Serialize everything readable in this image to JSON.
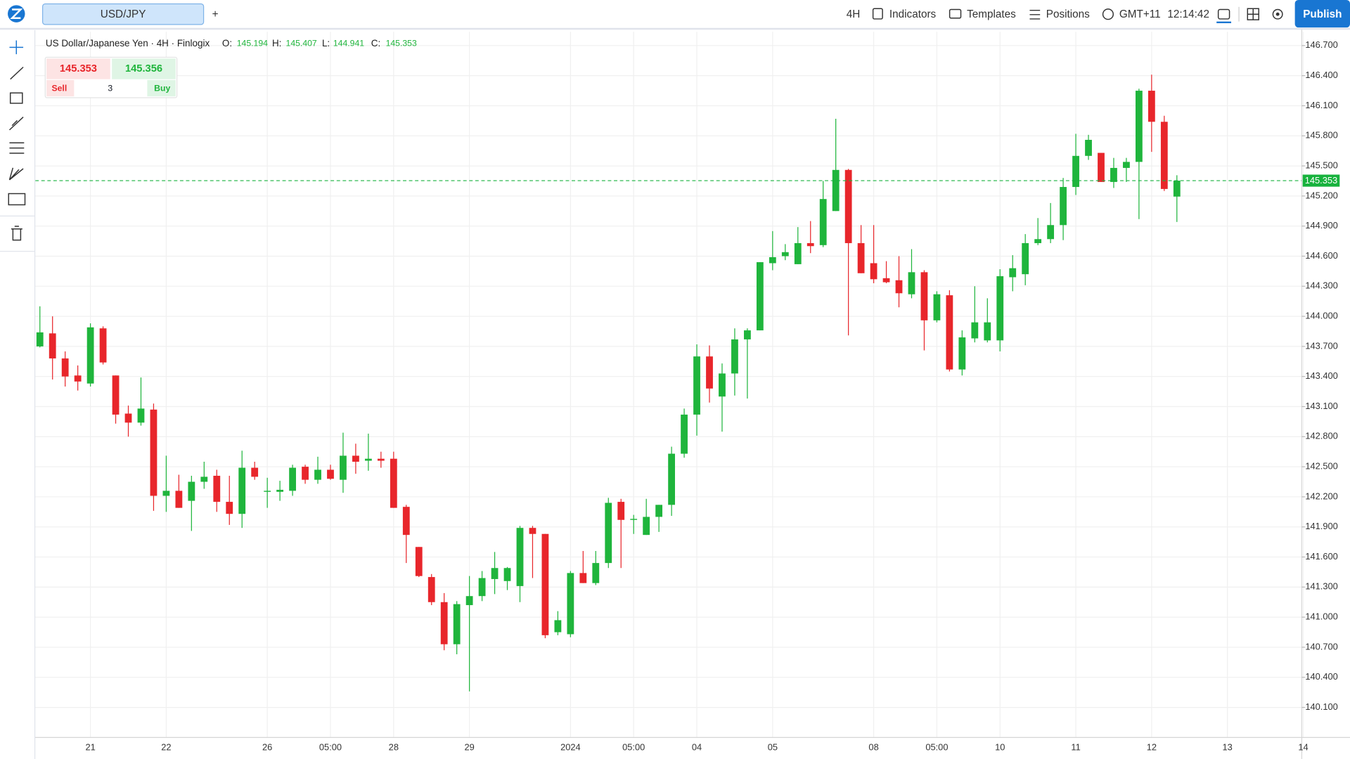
{
  "toolbar": {
    "symbol_tab": "USD/JPY",
    "add_tab": "+",
    "interval": "4H",
    "indicators": "Indicators",
    "templates": "Templates",
    "positions": "Positions",
    "timezone": "GMT+11",
    "clock": "12:14:42",
    "publish": "Publish"
  },
  "legend": {
    "title": "US Dollar/Japanese Yen · 4H · Finlogix",
    "open_label": "O:",
    "open": "145.194",
    "high_label": "H:",
    "high": "145.407",
    "low_label": "L:",
    "low": "144.941",
    "close_label": "C:",
    "close": "145.353"
  },
  "trade": {
    "sell_price": "145.353",
    "buy_price": "145.356",
    "sell": "Sell",
    "quantity": "3",
    "buy": "Buy"
  },
  "chart_data": {
    "type": "candlestick",
    "up_color": "#1fb53c",
    "down_color": "#e8262b",
    "grid": true,
    "categories": [
      null,
      null,
      null,
      null,
      "21",
      null,
      null,
      null,
      null,
      null,
      "22",
      null,
      null,
      null,
      null,
      null,
      null,
      null,
      "26",
      null,
      null,
      null,
      null,
      "05:00",
      null,
      null,
      null,
      null,
      "28",
      null,
      null,
      null,
      null,
      null,
      "29",
      null,
      null,
      null,
      null,
      null,
      null,
      null,
      "2024",
      null,
      null,
      null,
      null,
      "05:00",
      null,
      null,
      null,
      null,
      "04",
      null,
      null,
      null,
      null,
      null,
      "05",
      null,
      null,
      null,
      null,
      null,
      null,
      null,
      "08",
      null,
      null,
      null,
      null,
      "05:00",
      null,
      null,
      null,
      null,
      "10",
      null,
      null,
      null,
      null,
      null,
      "11",
      null,
      null,
      null,
      null,
      null,
      "12",
      null,
      null,
      null,
      null,
      null,
      "13",
      null,
      null,
      null,
      null,
      null,
      "14"
    ],
    "open": [
      143.7,
      143.83,
      143.58,
      143.41,
      143.33,
      143.88,
      143.41,
      143.03,
      142.94,
      143.07,
      142.21,
      142.26,
      142.16,
      142.35,
      142.41,
      142.15,
      142.03,
      142.49,
      142.25,
      142.25,
      142.26,
      142.5,
      142.37,
      142.47,
      142.37,
      142.61,
      142.56,
      142.58,
      142.58,
      142.1,
      141.7,
      141.4,
      141.15,
      140.73,
      141.12,
      141.21,
      141.38,
      141.36,
      141.31,
      141.89,
      141.83,
      140.85,
      140.83,
      141.44,
      141.34,
      141.54,
      142.15,
      141.97,
      141.82,
      142.0,
      142.12,
      142.63,
      143.02,
      143.6,
      143.2,
      143.43,
      143.77,
      143.86,
      144.53,
      144.6,
      144.52,
      144.73,
      144.71,
      145.05,
      145.46,
      144.73,
      144.53,
      144.38,
      144.36,
      144.22,
      144.44,
      143.96,
      144.21,
      143.47,
      143.78,
      143.76,
      143.76,
      144.39,
      144.42,
      144.73,
      144.77,
      144.91,
      145.29,
      145.6,
      145.63,
      145.34,
      145.48,
      145.54,
      146.25,
      145.94,
      145.194,
      null,
      null,
      null,
      null,
      null,
      null,
      null,
      null,
      null,
      null
    ],
    "high": [
      144.1,
      144.0,
      143.65,
      143.51,
      143.93,
      143.9,
      143.41,
      143.11,
      143.39,
      143.13,
      142.61,
      142.42,
      142.41,
      142.55,
      142.47,
      142.41,
      142.66,
      142.55,
      142.39,
      142.36,
      142.52,
      142.52,
      142.6,
      142.52,
      142.84,
      142.73,
      142.83,
      142.65,
      142.65,
      142.12,
      141.7,
      141.43,
      141.24,
      141.16,
      141.41,
      141.46,
      141.65,
      141.5,
      141.91,
      141.91,
      141.83,
      141.06,
      141.46,
      141.66,
      141.66,
      142.19,
      142.18,
      142.02,
      142.18,
      142.12,
      142.7,
      143.08,
      143.72,
      143.71,
      143.53,
      143.88,
      143.88,
      144.54,
      144.85,
      144.72,
      144.89,
      144.95,
      145.35,
      145.97,
      145.47,
      144.91,
      144.91,
      144.55,
      144.6,
      144.67,
      144.46,
      144.25,
      144.26,
      143.86,
      144.3,
      144.18,
      144.47,
      144.61,
      144.82,
      144.98,
      145.13,
      145.38,
      145.82,
      145.81,
      145.63,
      145.58,
      145.58,
      146.27,
      146.41,
      146.0,
      145.407,
      null,
      null,
      null,
      null,
      null,
      null,
      null,
      null,
      null,
      null
    ],
    "low": [
      143.69,
      143.37,
      143.3,
      143.26,
      143.3,
      143.52,
      142.93,
      142.8,
      142.91,
      142.06,
      142.05,
      142.09,
      141.86,
      142.28,
      142.05,
      141.92,
      141.89,
      142.37,
      142.09,
      142.16,
      142.21,
      142.33,
      142.33,
      142.37,
      142.24,
      142.43,
      142.46,
      142.49,
      142.09,
      141.54,
      141.4,
      141.12,
      140.67,
      140.63,
      140.26,
      141.16,
      141.23,
      141.27,
      141.15,
      141.39,
      140.79,
      140.82,
      140.8,
      141.34,
      141.32,
      141.49,
      141.49,
      141.83,
      141.82,
      141.85,
      142.01,
      142.59,
      142.81,
      143.14,
      142.85,
      143.21,
      143.18,
      143.86,
      144.46,
      144.56,
      144.52,
      144.63,
      144.69,
      145.05,
      143.81,
      144.43,
      144.33,
      144.33,
      144.09,
      144.18,
      143.66,
      143.94,
      143.45,
      143.41,
      143.74,
      143.74,
      143.65,
      144.25,
      144.31,
      144.71,
      144.73,
      144.76,
      145.21,
      145.56,
      145.34,
      145.28,
      145.34,
      144.97,
      145.64,
      145.25,
      144.941,
      null,
      null,
      null,
      null,
      null,
      null,
      null,
      null,
      null,
      null
    ],
    "close": [
      143.84,
      143.58,
      143.4,
      143.35,
      143.89,
      143.54,
      143.02,
      142.94,
      143.08,
      142.21,
      142.26,
      142.09,
      142.35,
      142.4,
      142.15,
      142.03,
      142.49,
      142.4,
      142.26,
      142.27,
      142.49,
      142.37,
      142.47,
      142.38,
      142.61,
      142.55,
      142.58,
      142.56,
      142.09,
      141.82,
      141.41,
      141.15,
      140.73,
      141.13,
      141.21,
      141.39,
      141.49,
      141.49,
      141.89,
      141.83,
      140.82,
      140.97,
      141.44,
      141.34,
      141.54,
      142.14,
      141.97,
      141.98,
      142.0,
      142.12,
      142.63,
      143.02,
      143.6,
      143.28,
      143.43,
      143.77,
      143.86,
      144.54,
      144.59,
      144.64,
      144.73,
      144.7,
      145.17,
      145.46,
      144.73,
      144.43,
      144.37,
      144.34,
      144.23,
      144.44,
      143.96,
      144.22,
      143.47,
      143.79,
      143.94,
      143.94,
      144.4,
      144.48,
      144.73,
      144.77,
      144.91,
      145.29,
      145.6,
      145.76,
      145.34,
      145.48,
      145.54,
      146.25,
      145.94,
      145.27,
      145.353,
      null,
      null,
      null,
      null,
      null,
      null,
      null,
      null,
      null,
      null
    ],
    "last_price": 145.353,
    "last_price_color": "#17b23d",
    "ylim": [
      139.8,
      146.837
    ],
    "yticks": [
      {
        "value": 140.1,
        "label": "140.100"
      },
      {
        "value": 140.4,
        "label": "140.400"
      },
      {
        "value": 140.7,
        "label": "140.700"
      },
      {
        "value": 141.0,
        "label": "141.000"
      },
      {
        "value": 141.3,
        "label": "141.300"
      },
      {
        "value": 141.6,
        "label": "141.600"
      },
      {
        "value": 141.9,
        "label": "141.900"
      },
      {
        "value": 142.2,
        "label": "142.200"
      },
      {
        "value": 142.5,
        "label": "142.500"
      },
      {
        "value": 142.8,
        "label": "142.800"
      },
      {
        "value": 143.1,
        "label": "143.100"
      },
      {
        "value": 143.4,
        "label": "143.400"
      },
      {
        "value": 143.7,
        "label": "143.700"
      },
      {
        "value": 144.0,
        "label": "144.000"
      },
      {
        "value": 144.3,
        "label": "144.300"
      },
      {
        "value": 144.6,
        "label": "144.600"
      },
      {
        "value": 144.9,
        "label": "144.900"
      },
      {
        "value": 145.2,
        "label": "145.200"
      },
      {
        "value": 145.5,
        "label": "145.500"
      },
      {
        "value": 145.8,
        "label": "145.800"
      },
      {
        "value": 146.1,
        "label": "146.100"
      },
      {
        "value": 146.4,
        "label": "146.400"
      },
      {
        "value": 146.7,
        "label": "146.700"
      }
    ]
  }
}
